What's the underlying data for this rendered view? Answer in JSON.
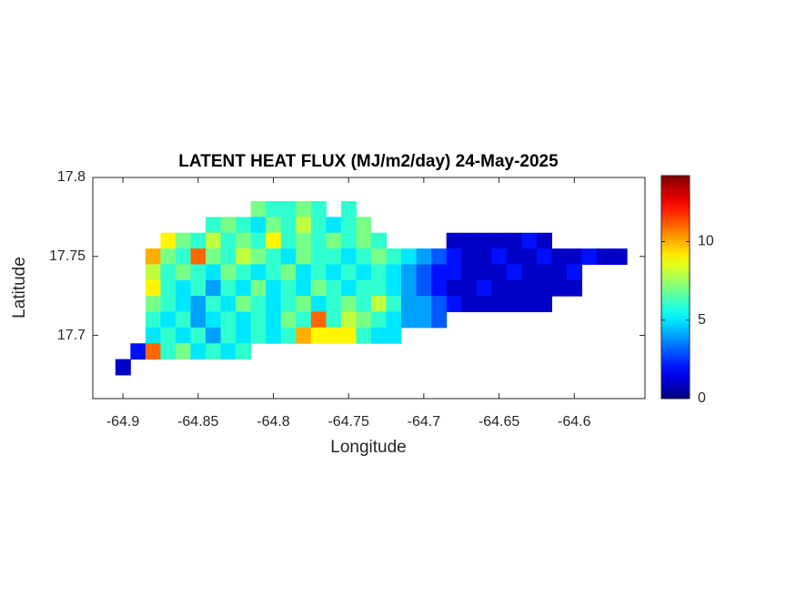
{
  "chart_data": {
    "type": "heatmap",
    "title": "LATENT HEAT FLUX (MJ/m2/day) 24-May-2025",
    "x_label": "Longitude",
    "y_label": "Latitude",
    "colormap": "jet",
    "xlim": [
      -64.92,
      -64.553
    ],
    "ylim": [
      17.66,
      17.8
    ],
    "xticks": [
      -64.9,
      -64.85,
      -64.8,
      -64.75,
      -64.7,
      -64.65,
      -64.6
    ],
    "yticks": [
      17.7,
      17.75,
      17.8
    ],
    "clim": [
      0,
      14.2
    ],
    "cticks": [
      0,
      5,
      10
    ],
    "x": [
      -64.9,
      -64.89,
      -64.88,
      -64.87,
      -64.86,
      -64.85,
      -64.84,
      -64.83,
      -64.82,
      -64.81,
      -64.8,
      -64.79,
      -64.78,
      -64.77,
      -64.76,
      -64.75,
      -64.74,
      -64.73,
      -64.72,
      -64.71,
      -64.7,
      -64.69,
      -64.68,
      -64.67,
      -64.66,
      -64.65,
      -64.64,
      -64.63,
      -64.62,
      -64.61,
      -64.6,
      -64.59,
      -64.58,
      -64.57
    ],
    "y": [
      17.78,
      17.77,
      17.76,
      17.75,
      17.74,
      17.73,
      17.72,
      17.71,
      17.7,
      17.69,
      17.68
    ],
    "z": [
      [
        null,
        null,
        null,
        null,
        null,
        null,
        null,
        null,
        null,
        7,
        6,
        6,
        7,
        6,
        null,
        6,
        null,
        null,
        null,
        null,
        null,
        null,
        null,
        null,
        null,
        null,
        null,
        null,
        null,
        null,
        null,
        null,
        null,
        null
      ],
      [
        null,
        null,
        null,
        null,
        null,
        null,
        6,
        7,
        6,
        5,
        7,
        6,
        8,
        6,
        5,
        6,
        7,
        null,
        null,
        null,
        null,
        null,
        null,
        null,
        null,
        null,
        null,
        null,
        null,
        null,
        null,
        null,
        null,
        null
      ],
      [
        null,
        null,
        null,
        9,
        7,
        6,
        8,
        6,
        7,
        6,
        9,
        6,
        7,
        6,
        7,
        6,
        7,
        6,
        null,
        null,
        null,
        null,
        1,
        1,
        1,
        1,
        1,
        2,
        1,
        null,
        null,
        null,
        null,
        null
      ],
      [
        null,
        null,
        10,
        7,
        6,
        11,
        7,
        6,
        8,
        7,
        6,
        5,
        7,
        6,
        6,
        5,
        6,
        7,
        6,
        5,
        4,
        3,
        2,
        1,
        1,
        2,
        1,
        1,
        2,
        1,
        1,
        2,
        1,
        1
      ],
      [
        null,
        null,
        8,
        6,
        7,
        6,
        5,
        7,
        6,
        5,
        6,
        7,
        5,
        6,
        5,
        6,
        5,
        6,
        5,
        4,
        3,
        2,
        2,
        1,
        1,
        1,
        2,
        1,
        1,
        1,
        2,
        null,
        null,
        null
      ],
      [
        null,
        null,
        9,
        6,
        5,
        6,
        4,
        6,
        5,
        7,
        5,
        6,
        5,
        7,
        6,
        5,
        6,
        6,
        5,
        4,
        3,
        2,
        1,
        1,
        2,
        1,
        1,
        1,
        1,
        1,
        1,
        null,
        null,
        null
      ],
      [
        null,
        null,
        7,
        6,
        5,
        4,
        6,
        5,
        7,
        6,
        5,
        6,
        7,
        5,
        6,
        7,
        6,
        8,
        6,
        4,
        4,
        3,
        2,
        1,
        1,
        1,
        1,
        1,
        1,
        null,
        null,
        null,
        null,
        null
      ],
      [
        null,
        null,
        6,
        5,
        6,
        4,
        5,
        6,
        5,
        6,
        5,
        7,
        6,
        11,
        6,
        8,
        7,
        6,
        5,
        4,
        4,
        3,
        null,
        null,
        null,
        null,
        null,
        null,
        null,
        null,
        null,
        null,
        null,
        null
      ],
      [
        null,
        null,
        5,
        6,
        5,
        6,
        4,
        6,
        5,
        6,
        5,
        6,
        10,
        9,
        9,
        9,
        6,
        5,
        5,
        null,
        null,
        null,
        null,
        null,
        null,
        null,
        null,
        null,
        null,
        null,
        null,
        null,
        null,
        null
      ],
      [
        null,
        2,
        11,
        6,
        7,
        5,
        6,
        5,
        6,
        null,
        null,
        null,
        null,
        null,
        null,
        null,
        null,
        null,
        null,
        null,
        null,
        null,
        null,
        null,
        null,
        null,
        null,
        null,
        null,
        null,
        null,
        null,
        null,
        null
      ],
      [
        1,
        null,
        null,
        null,
        null,
        null,
        null,
        null,
        null,
        null,
        null,
        null,
        null,
        null,
        null,
        null,
        null,
        null,
        null,
        null,
        null,
        null,
        null,
        null,
        null,
        null,
        null,
        null,
        null,
        null,
        null,
        null,
        null,
        null
      ]
    ]
  }
}
